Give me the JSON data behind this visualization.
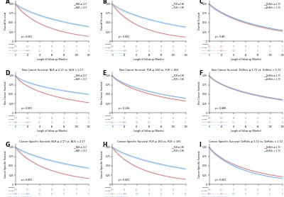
{
  "panels": [
    {
      "label": "A",
      "title": "Overall Survival: NLR ≥ 2.17 vs. NLR < 2.17",
      "ylabel": "Overall Survival",
      "xlabel": "Length of Follow up (Months)",
      "legend": [
        "NLR ≥ 2.17",
        "NLR < 2.17"
      ],
      "pvalue": "p < 0.001",
      "color_high": "#d08080",
      "color_low": "#7aace0",
      "curve_type": "OS_NLR",
      "group1_label": "NLR ≥ 2.17 (n = 179 patients)",
      "group2_label": "NLR < 2.17 (n = 205 patients)",
      "n1": 179,
      "n2": 205
    },
    {
      "label": "B",
      "title": "Overall Survival: PLR ≥ 160 vs. PLR < 160",
      "ylabel": "Overall Survival",
      "xlabel": "Length of Follow up (Months)",
      "legend": [
        "PLR ≥ 160",
        "PLR < 160"
      ],
      "pvalue": "p < 0.001",
      "color_high": "#d08080",
      "color_low": "#7aace0",
      "curve_type": "OS_PLR",
      "group1_label": "PLR ≥ 160 (n = 149 patients)",
      "group2_label": "PLR < 160 (n = 235 patients)",
      "n1": 149,
      "n2": 235
    },
    {
      "label": "C",
      "title": "Overall Survival: DeRitis ≥ 1.72 vs. DeRitis < 1.72",
      "ylabel": "Overall Survival",
      "xlabel": "Length of Follow up (Months)",
      "legend": [
        "DeRitis ≥ 1.72",
        "DeRitis < 1.72"
      ],
      "pvalue": "p = 0.49",
      "color_high": "#d08080",
      "color_low": "#7aace0",
      "curve_type": "OS_DR",
      "group1_label": "DeRitis ≥ 1.72 (n = 185 patients)",
      "group2_label": "DeRitis < 1.72 (n = 199 patients)",
      "n1": 185,
      "n2": 199
    },
    {
      "label": "D",
      "title": "Non-Cancer Survival: NLR ≥ 2.17 vs. NLR < 2.17",
      "ylabel": "Non-Cancer Survival",
      "xlabel": "Length of Follow up (Months)",
      "legend": [
        "NLR ≥ 2.17",
        "NLR < 2.17"
      ],
      "pvalue": "p < 0.001",
      "color_high": "#d08080",
      "color_low": "#7aace0",
      "curve_type": "NCS_NLR",
      "group1_label": "NLR ≥ 2.17 (n = 179 patients)",
      "group2_label": "NLR < 2.17 (n = 205 patients)",
      "n1": 179,
      "n2": 205
    },
    {
      "label": "E",
      "title": "Non-Cancer Survival: PLR ≥ 160 vs. PLR < 160",
      "ylabel": "Non-Cancer Survival",
      "xlabel": "Length of Follow up (Months)",
      "legend": [
        "PLR ≥ 160",
        "PLR < 160"
      ],
      "pvalue": "p = 0.126",
      "color_high": "#d08080",
      "color_low": "#7aace0",
      "curve_type": "NCS_PLR",
      "group1_label": "PLR ≥ 160 (n = 149 patients)",
      "group2_label": "PLR < 160 (n = 235 patients)",
      "n1": 149,
      "n2": 235
    },
    {
      "label": "F",
      "title": "Non-Cancer Survival: DeRitis ≥ 1.72 vs. DeRitis < 1.72",
      "ylabel": "Non-Cancer Survival",
      "xlabel": "Length of Follow up (Months)",
      "legend": [
        "DeRitis ≥ 1.72",
        "DeRitis < 1.72"
      ],
      "pvalue": "p = 0.445",
      "color_high": "#d08080",
      "color_low": "#7aace0",
      "curve_type": "NCS_DR",
      "group1_label": "DeRitis ≥ 1.72 (n = 185 patients)",
      "group2_label": "DeRitis < 1.72 (n = 199 patients)",
      "n1": 185,
      "n2": 199
    },
    {
      "label": "G",
      "title": "Cancer Specific Survival: NLR ≥ 2.17 vs. NLR < 2.17",
      "ylabel": "Cancer Specific Survival",
      "xlabel": "Length of Follow up (Months)",
      "legend": [
        "NLR ≥ 2.17",
        "NLR < 2.17"
      ],
      "pvalue": "p < 0.001",
      "color_high": "#d08080",
      "color_low": "#7aace0",
      "curve_type": "CSS_NLR",
      "group1_label": "NLR ≥ 2.17 (n = 179 patients)",
      "group2_label": "NLR < 2.17 (n = 205 patients)",
      "n1": 179,
      "n2": 205
    },
    {
      "label": "H",
      "title": "Cancer Specific Survival: PLR ≥ 160 vs. PLR < 160",
      "ylabel": "Cancer Specific Survival",
      "xlabel": "Length of Follow up (Months)",
      "legend": [
        "PLR ≥ 160",
        "PLR < 160"
      ],
      "pvalue": "p < 0.001",
      "color_high": "#d08080",
      "color_low": "#7aace0",
      "curve_type": "CSS_PLR",
      "group1_label": "PLR ≥ 160 (n = 149 patients)",
      "group2_label": "PLR < 160 (n = 235 patients)",
      "n1": 149,
      "n2": 235
    },
    {
      "label": "I",
      "title": "Cancer Specific Survival: DeRitis ≥ 1.72 vs. DeRitis < 1.72",
      "ylabel": "Cancer Specific Survival",
      "xlabel": "Length of Follow up (Months)",
      "legend": [
        "DeRitis ≥ 1.72",
        "DeRitis < 1.72"
      ],
      "pvalue": "p < 0.001",
      "color_high": "#d08080",
      "color_low": "#7aace0",
      "curve_type": "CSS_DR",
      "group1_label": "DeRitis ≥ 1.72 (n = 185 patients)",
      "group2_label": "DeRitis < 1.72 (n = 199 patients)",
      "n1": 185,
      "n2": 199
    }
  ],
  "bg_color": "#ffffff",
  "xticks": [
    0,
    20,
    40,
    60,
    80,
    100,
    120
  ],
  "yticks": [
    0.0,
    0.25,
    0.5,
    0.75,
    1.0
  ],
  "ytick_labels": [
    "0",
    "0.25",
    "0.50",
    "0.75",
    "1.00"
  ]
}
